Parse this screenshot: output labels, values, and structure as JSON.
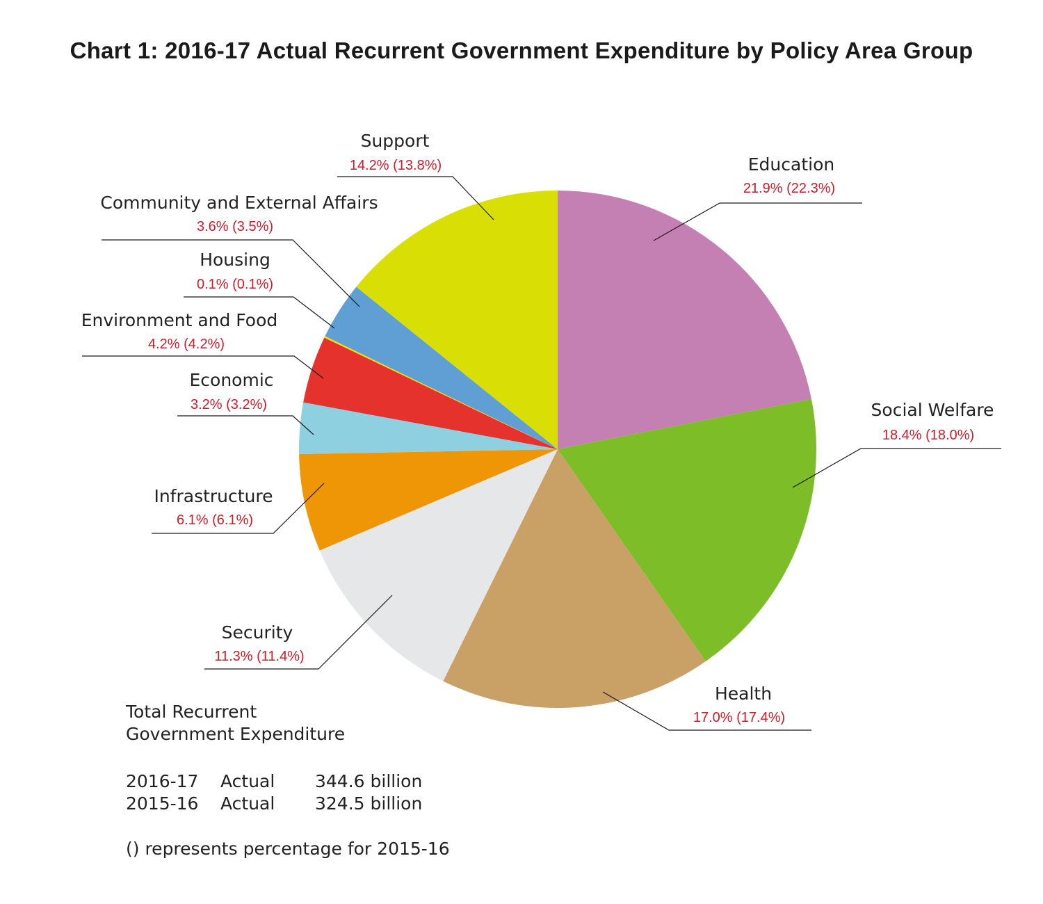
{
  "chart_data": {
    "type": "pie",
    "title": "Chart 1: 2016-17 Actual Recurrent Government Expenditure by Policy Area Group",
    "slices": [
      {
        "name": "Education",
        "value": 21.9,
        "prev": 22.3,
        "label": "21.9% (22.3%)",
        "color": "#c47fb3"
      },
      {
        "name": "Social Welfare",
        "value": 18.4,
        "prev": 18.0,
        "label": "18.4% (18.0%)",
        "color": "#7cbd28"
      },
      {
        "name": "Health",
        "value": 17.0,
        "prev": 17.4,
        "label": "17.0% (17.4%)",
        "color": "#c9a066"
      },
      {
        "name": "Security",
        "value": 11.3,
        "prev": 11.4,
        "label": "11.3% (11.4%)",
        "color": "#e6e7e8"
      },
      {
        "name": "Infrastructure",
        "value": 6.1,
        "prev": 6.1,
        "label": "6.1% (6.1%)",
        "color": "#ef9606"
      },
      {
        "name": "Economic",
        "value": 3.2,
        "prev": 3.2,
        "label": "3.2% (3.2%)",
        "color": "#8ed0e0"
      },
      {
        "name": "Environment and Food",
        "value": 4.2,
        "prev": 4.2,
        "label": "4.2% (4.2%)",
        "color": "#e5322d"
      },
      {
        "name": "Housing",
        "value": 0.1,
        "prev": 0.1,
        "label": "0.1% (0.1%)",
        "color": "#f1e500"
      },
      {
        "name": "Community and External Affairs",
        "value": 3.6,
        "prev": 3.5,
        "label": "3.6% (3.5%)",
        "color": "#5f9fd3"
      },
      {
        "name": "Support",
        "value": 14.2,
        "prev": 13.8,
        "label": "14.2% (13.8%)",
        "color": "#d9df05"
      }
    ]
  },
  "notes": {
    "total_line1": "Total Recurrent",
    "total_line2": "Government Expenditure",
    "rows": [
      {
        "year": "2016-17",
        "kind": "Actual",
        "amount": "344.6 billion"
      },
      {
        "year": "2015-16",
        "kind": "Actual",
        "amount": "324.5 billion"
      }
    ],
    "footnote": "() represents percentage for 2015-16"
  }
}
